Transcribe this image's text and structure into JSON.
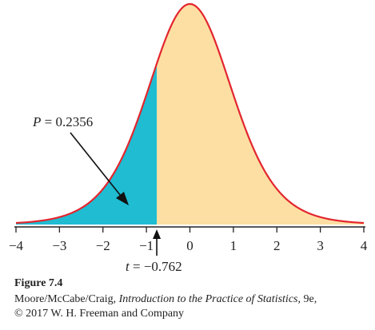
{
  "chart_data": {
    "type": "area",
    "distribution": "t density curve",
    "xlim": [
      -4,
      4
    ],
    "x_ticks": [
      -4,
      -3,
      -2,
      -1,
      0,
      1,
      2,
      3,
      4
    ],
    "x_tick_labels": [
      "−4",
      "−3",
      "−2",
      "−1",
      "0",
      "1",
      "2",
      "3",
      "4"
    ],
    "cutoff": -0.762,
    "p_value": 0.2356,
    "annotations": {
      "p_label": "P = 0.2356",
      "t_label": "t = −0.762"
    },
    "colors": {
      "curve": "#e3262e",
      "left_tail": "#1fbcd2",
      "right_region": "#fddfa3",
      "axis": "#222222",
      "arrow": "#111111"
    }
  },
  "caption": {
    "title": "Figure 7.4",
    "authors": "Moore/McCabe/Craig, ",
    "book": "Introduction to the Practice of Statistics",
    "edition": ", 9e,",
    "copyright": "© 2017 W. H. Freeman and Company"
  }
}
